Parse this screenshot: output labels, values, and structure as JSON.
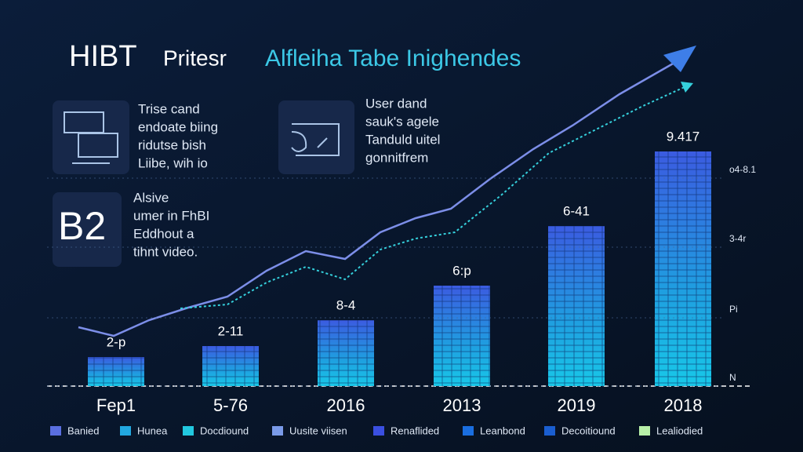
{
  "header": {
    "title_lead": "HIBT",
    "title_mid": "Pritesr",
    "title_accent": "Alfleiha Tabe Inighendes"
  },
  "cards": [
    {
      "icon_text": "",
      "lines": [
        "Trise cand",
        "endoate biing",
        "ridutse bish",
        "Liibe, wih io"
      ]
    },
    {
      "icon_text": "",
      "lines": [
        "User dand",
        "sauk's agele",
        "Tanduld uitel",
        "gonnitfrem"
      ]
    },
    {
      "icon_text": "B2",
      "lines": [
        "Alsive",
        "umer in FhBI",
        "Eddhout a",
        "tihnt video."
      ]
    }
  ],
  "bars": [
    {
      "label": "2-p",
      "category": "Fep1"
    },
    {
      "label": "2-11",
      "category": "5-76"
    },
    {
      "label": "8-4",
      "category": "2016"
    },
    {
      "label": "6:p",
      "category": "2013"
    },
    {
      "label": "6-41",
      "category": "2019"
    },
    {
      "label": "9.417",
      "category": "2018"
    }
  ],
  "right_labels": [
    "o4-8.1",
    "3-4r",
    "Pi",
    "N"
  ],
  "legend": [
    "Banied",
    "Hunea",
    "Docdiound",
    "Uusite viisen",
    "Renaflided",
    "Leanbond",
    "Decoitiound",
    "Lealiodied"
  ]
}
